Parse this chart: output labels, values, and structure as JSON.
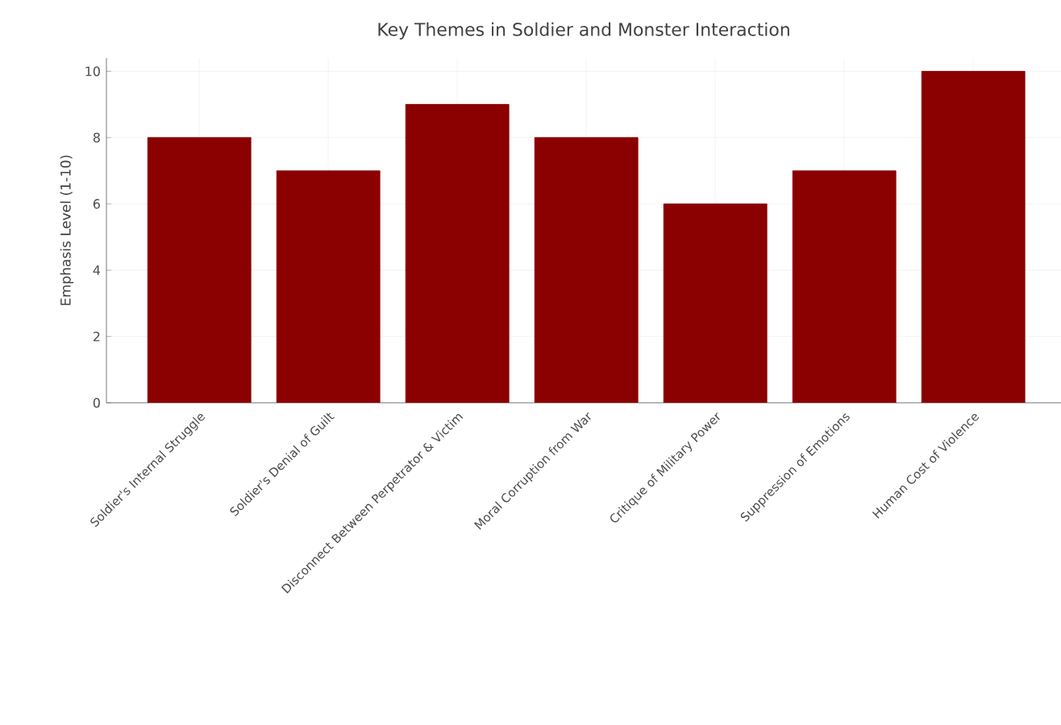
{
  "chart_data": {
    "type": "bar",
    "title": "Key Themes in Soldier and Monster Interaction",
    "ylabel": "Emphasis Level (1-10)",
    "categories": [
      "Soldier's Internal Struggle",
      "Soldier's Denial of Guilt",
      "Disconnect Between Perpetrator & Victim",
      "Moral Corruption from War",
      "Critique of Military Power",
      "Suppression of Emotions",
      "Human Cost of Violence"
    ],
    "values": [
      8,
      7,
      9,
      8,
      6,
      7,
      10
    ],
    "color": "#8b0000",
    "ylim": [
      0,
      10.4
    ],
    "yticks": [
      0,
      2,
      4,
      6,
      8,
      10
    ],
    "grid": true
  }
}
